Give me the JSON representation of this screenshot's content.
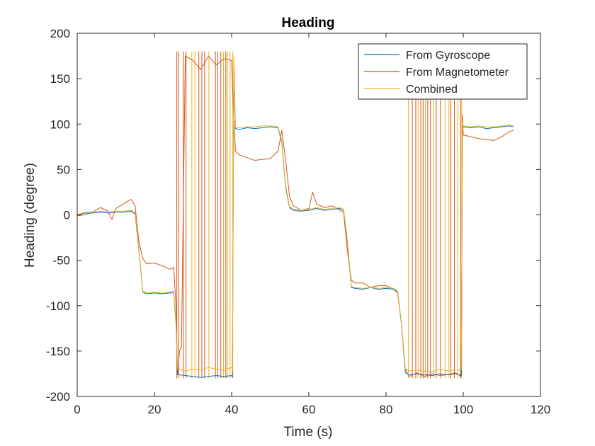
{
  "chart_data": {
    "type": "line",
    "title": "Heading",
    "xlabel": "Time (s)",
    "ylabel": "Heading (degree)",
    "xlim": [
      0,
      120
    ],
    "ylim": [
      -200,
      200
    ],
    "x_ticks": [
      "0",
      "20",
      "40",
      "60",
      "80",
      "100",
      "120"
    ],
    "y_ticks": [
      "-200",
      "-150",
      "-100",
      "-50",
      "0",
      "50",
      "100",
      "150",
      "200"
    ],
    "grid": false,
    "legend_position": "top-right",
    "series": [
      {
        "name": "From Gyroscope",
        "color": "#0072BD",
        "x": [
          0,
          2,
          4,
          6,
          8,
          10,
          12,
          14,
          15,
          16,
          17,
          18,
          20,
          22,
          24,
          25,
          25.6,
          26,
          28,
          30,
          32,
          34,
          36,
          38,
          40,
          40.2,
          40.6,
          41,
          42,
          44,
          46,
          48,
          50,
          52,
          53,
          54,
          55,
          56,
          58,
          60,
          62,
          64,
          66,
          68,
          69,
          70,
          71,
          72,
          74,
          76,
          78,
          80,
          82,
          83,
          84,
          85,
          86,
          88,
          90,
          92,
          94,
          96,
          98,
          99.5,
          99.8,
          100,
          102,
          104,
          106,
          108,
          110,
          112,
          113
        ],
        "y": [
          0,
          2,
          2,
          3,
          2,
          3,
          3,
          4,
          1,
          -40,
          -85,
          -87,
          -86,
          -87,
          -86,
          -86,
          -120,
          -176,
          -177,
          -178,
          -179,
          -178,
          -177,
          -178,
          -177,
          -179,
          160,
          95,
          94,
          96,
          95,
          96,
          97,
          96,
          80,
          30,
          8,
          5,
          4,
          5,
          7,
          5,
          6,
          7,
          5,
          -30,
          -80,
          -81,
          -82,
          -80,
          -82,
          -81,
          -82,
          -85,
          -120,
          -174,
          -176,
          -175,
          -176,
          -177,
          -175,
          -176,
          -175,
          -177,
          100,
          97,
          96,
          97,
          95,
          96,
          97,
          98,
          97
        ]
      },
      {
        "name": "From Magnetometer",
        "color": "#D95319",
        "x": [
          0,
          2,
          4,
          6,
          8,
          9,
          10,
          12,
          13,
          14,
          15,
          16,
          17,
          18,
          20,
          22,
          24,
          25,
          25.6,
          26,
          26.5,
          27,
          28,
          30,
          32,
          34,
          36,
          38,
          40,
          40.5,
          41,
          42,
          44,
          46,
          48,
          50,
          52,
          53,
          54,
          55,
          56,
          58,
          60,
          61,
          62,
          64,
          66,
          68,
          69,
          70,
          71,
          72,
          74,
          76,
          78,
          80,
          82,
          83,
          84,
          85,
          86,
          88,
          90,
          92,
          94,
          96,
          98,
          99.5,
          99.8,
          100,
          102,
          104,
          106,
          108,
          110,
          112,
          113
        ],
        "y": [
          -1,
          0,
          3,
          8,
          4,
          -5,
          7,
          12,
          15,
          17,
          10,
          -30,
          -48,
          -54,
          -53,
          -56,
          -60,
          -58,
          -100,
          -176,
          -150,
          -145,
          175,
          170,
          160,
          175,
          165,
          172,
          170,
          110,
          70,
          66,
          63,
          60,
          61,
          62,
          70,
          93,
          60,
          20,
          10,
          5,
          7,
          25,
          12,
          8,
          10,
          5,
          3,
          -40,
          -72,
          -75,
          -75,
          -80,
          -78,
          -78,
          -82,
          -86,
          -120,
          -170,
          -178,
          -174,
          -178,
          -175,
          -177,
          -176,
          -174,
          -178,
          110,
          88,
          86,
          84,
          83,
          82,
          86,
          92,
          93
        ]
      },
      {
        "name": "Combined",
        "color": "#EDB120",
        "x": [
          0,
          2,
          4,
          6,
          8,
          10,
          12,
          14,
          15,
          16,
          17,
          18,
          20,
          22,
          24,
          25,
          25.6,
          26,
          28,
          30,
          32,
          34,
          36,
          38,
          40,
          40.2,
          40.6,
          41,
          42,
          44,
          46,
          48,
          50,
          52,
          53,
          54,
          55,
          56,
          58,
          60,
          62,
          64,
          66,
          68,
          69,
          70,
          71,
          72,
          74,
          76,
          78,
          80,
          82,
          83,
          84,
          85,
          86,
          88,
          90,
          92,
          94,
          96,
          98,
          99.5,
          99.8,
          100,
          102,
          104,
          106,
          108,
          110,
          112,
          113
        ],
        "y": [
          0,
          3,
          3,
          4,
          3,
          4,
          4,
          5,
          2,
          -38,
          -84,
          -86,
          -85,
          -86,
          -85,
          -84,
          -120,
          -170,
          -172,
          -170,
          -171,
          -168,
          -170,
          -171,
          -168,
          -172,
          175,
          96,
          96,
          97,
          97,
          98,
          98,
          97,
          82,
          32,
          9,
          6,
          5,
          6,
          8,
          6,
          7,
          8,
          6,
          -28,
          -79,
          -80,
          -81,
          -80,
          -81,
          -80,
          -81,
          -84,
          -120,
          -170,
          -172,
          -171,
          -172,
          -173,
          -170,
          -172,
          -171,
          -170,
          102,
          98,
          97,
          98,
          97,
          97,
          98,
          99,
          98
        ]
      }
    ],
    "wrap_spikes": [
      {
        "series": "From Magnetometer",
        "x": [
          25.8,
          26.3,
          27.5,
          28.2,
          31.5,
          32.3,
          33,
          35.8,
          36.4,
          37.2,
          38.5,
          86.8,
          87.7,
          89,
          89.6,
          90.8,
          91.5,
          93,
          94.1,
          96.8,
          97.7,
          99.3
        ]
      },
      {
        "series": "Combined",
        "x": [
          29.7,
          30.5,
          34.1,
          37.9,
          38.9,
          39.6,
          40.3,
          85.8,
          88.3,
          90.2,
          92.3,
          95.3,
          96.3,
          98.6,
          99.6
        ]
      }
    ]
  }
}
